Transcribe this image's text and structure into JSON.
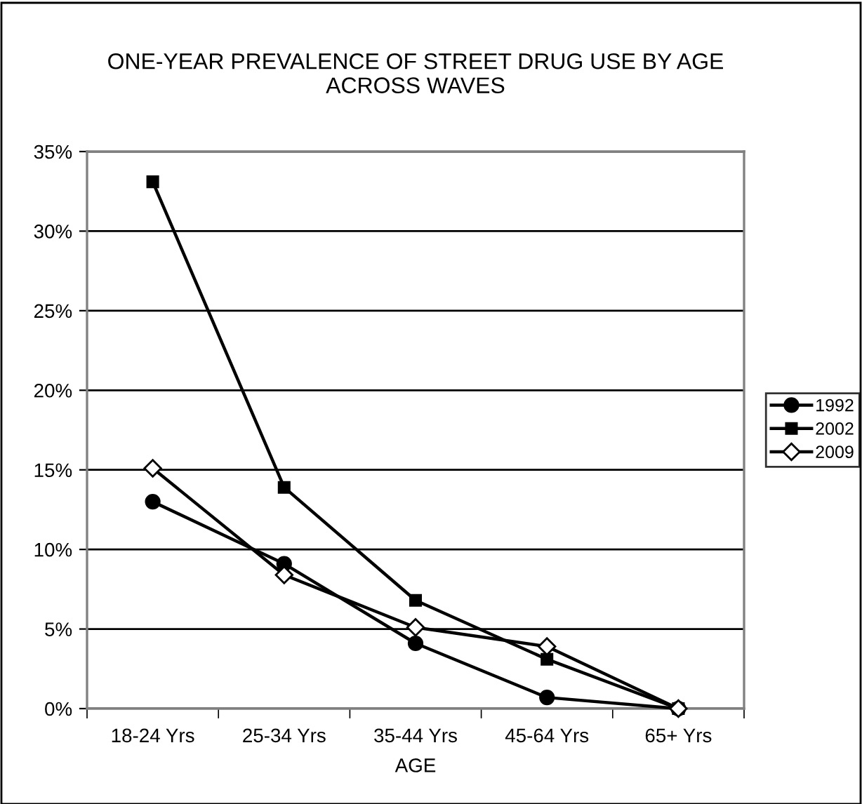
{
  "chart_data": {
    "type": "line",
    "title": "ONE-YEAR PREVALENCE OF STREET DRUG USE BY AGE\nACROSS WAVES",
    "xlabel": "AGE",
    "categories": [
      "18-24 Yrs",
      "25-34 Yrs",
      "35-44 Yrs",
      "45-64 Yrs",
      "65+ Yrs"
    ],
    "series": [
      {
        "name": "1992",
        "color": "#000000",
        "marker": "circle",
        "values": [
          13.0,
          9.1,
          4.1,
          0.7,
          0.0
        ]
      },
      {
        "name": "2002",
        "color": "#000000",
        "marker": "square",
        "values": [
          33.1,
          13.9,
          6.8,
          3.1,
          0.0
        ]
      },
      {
        "name": "2009",
        "color": "#000000",
        "marker": "diamond",
        "values": [
          15.1,
          8.4,
          5.1,
          3.9,
          0.0
        ]
      }
    ],
    "ylim": [
      0,
      35
    ],
    "yticks": [
      {
        "value": 0,
        "label": "0%"
      },
      {
        "value": 5,
        "label": "5%"
      },
      {
        "value": 10,
        "label": "10%"
      },
      {
        "value": 15,
        "label": "15%"
      },
      {
        "value": 20,
        "label": "20%"
      },
      {
        "value": 25,
        "label": "25%"
      },
      {
        "value": 30,
        "label": "30%"
      },
      {
        "value": 35,
        "label": "35%"
      }
    ],
    "grid": "y",
    "legend": "right",
    "line_style": "solid"
  }
}
